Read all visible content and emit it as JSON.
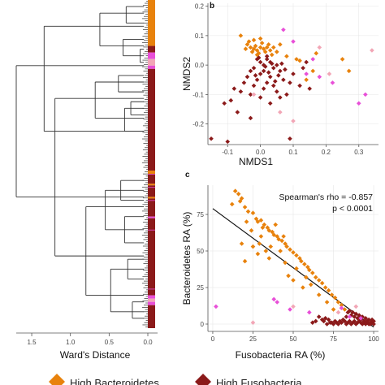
{
  "colors": {
    "high_bacteroidetes": "#e8820c",
    "high_fusobacteria": "#8b1a1a",
    "other": "#e84fd8",
    "light_pink": "#f2a6b6",
    "grid": "#e6e6e6",
    "axis": "#555555"
  },
  "legend": {
    "items": [
      {
        "label": "High Bacteroidetes",
        "color": "#e8820c"
      },
      {
        "label": "High Fusobacteria",
        "color": "#8b1a1a"
      }
    ]
  },
  "chart_data": [
    {
      "type": "dendrogram",
      "xlabel": "Ward's Distance",
      "xlim": [
        1.7,
        0
      ],
      "xticks": [
        "1.5",
        "1.0",
        "0.5",
        "0.0"
      ],
      "xtick_values": [
        1.5,
        1.0,
        0.5,
        0.0
      ],
      "strip": [
        {
          "from": 0.0,
          "to": 0.14,
          "color": "#e8820c"
        },
        {
          "from": 0.14,
          "to": 0.16,
          "color": "#8b1a1a"
        },
        {
          "from": 0.16,
          "to": 0.18,
          "color": "#e84fd8"
        },
        {
          "from": 0.18,
          "to": 0.2,
          "color": "#f2a6b6"
        },
        {
          "from": 0.2,
          "to": 0.21,
          "color": "#e84fd8"
        },
        {
          "from": 0.21,
          "to": 0.52,
          "color": "#8b1a1a"
        },
        {
          "from": 0.52,
          "to": 0.53,
          "color": "#e8820c"
        },
        {
          "from": 0.53,
          "to": 0.56,
          "color": "#8b1a1a"
        },
        {
          "from": 0.56,
          "to": 0.565,
          "color": "#e8820c"
        },
        {
          "from": 0.565,
          "to": 0.6,
          "color": "#8b1a1a"
        },
        {
          "from": 0.6,
          "to": 0.605,
          "color": "#e8820c"
        },
        {
          "from": 0.605,
          "to": 0.66,
          "color": "#8b1a1a"
        },
        {
          "from": 0.66,
          "to": 0.665,
          "color": "#e84fd8"
        },
        {
          "from": 0.665,
          "to": 0.9,
          "color": "#8b1a1a"
        },
        {
          "from": 0.9,
          "to": 0.91,
          "color": "#e84fd8"
        },
        {
          "from": 0.91,
          "to": 0.92,
          "color": "#f2a6b6"
        },
        {
          "from": 0.92,
          "to": 0.93,
          "color": "#e84fd8"
        },
        {
          "from": 0.93,
          "to": 1.0,
          "color": "#8b1a1a"
        }
      ],
      "merges": [
        {
          "h": 1.8,
          "a": 0.2,
          "b": 0.6
        },
        {
          "h": 1.34,
          "a": 0.08,
          "b": 0.4
        },
        {
          "h": 0.62,
          "a": 0.04,
          "b": 0.14
        },
        {
          "h": 0.28,
          "a": 0.02,
          "b": 0.07
        },
        {
          "h": 0.32,
          "a": 0.12,
          "b": 0.17
        },
        {
          "h": 0.1,
          "a": 0.15,
          "b": 0.19
        },
        {
          "h": 1.2,
          "a": 0.3,
          "b": 0.78
        },
        {
          "h": 0.68,
          "a": 0.25,
          "b": 0.36
        },
        {
          "h": 0.38,
          "a": 0.23,
          "b": 0.28
        },
        {
          "h": 0.3,
          "a": 0.33,
          "b": 0.4
        },
        {
          "h": 0.22,
          "a": 0.31,
          "b": 0.35
        },
        {
          "h": 0.8,
          "a": 0.63,
          "b": 0.9
        },
        {
          "h": 0.55,
          "a": 0.58,
          "b": 0.7
        },
        {
          "h": 0.35,
          "a": 0.55,
          "b": 0.61
        },
        {
          "h": 0.3,
          "a": 0.66,
          "b": 0.74
        },
        {
          "h": 0.48,
          "a": 0.82,
          "b": 0.95
        },
        {
          "h": 0.26,
          "a": 0.79,
          "b": 0.85
        },
        {
          "h": 0.2,
          "a": 0.92,
          "b": 0.97
        }
      ]
    },
    {
      "type": "scatter",
      "panel_label": "b",
      "xlabel": "NMDS1",
      "ylabel": "NMDS2",
      "xlim": [
        -0.16,
        0.36
      ],
      "ylim": [
        -0.27,
        0.21
      ],
      "xticks": [
        -0.1,
        0.0,
        0.1,
        0.2,
        0.3
      ],
      "xtick_labels": [
        "-0.1",
        "0.0",
        "0.1",
        "0.2",
        "0.3"
      ],
      "yticks": [
        0.2,
        0.1,
        0.0,
        -0.1,
        -0.2
      ],
      "ytick_labels": [
        "0.2",
        "0.1",
        "0.0",
        "-0.1",
        "-0.2"
      ],
      "grid": true,
      "points": [
        [
          -0.04,
          0.07,
          0
        ],
        [
          -0.03,
          0.06,
          0
        ],
        [
          -0.02,
          0.055,
          0
        ],
        [
          -0.015,
          0.065,
          0
        ],
        [
          -0.01,
          0.05,
          0
        ],
        [
          0.0,
          0.06,
          0
        ],
        [
          0.01,
          0.055,
          0
        ],
        [
          -0.025,
          0.045,
          0
        ],
        [
          -0.005,
          0.04,
          0
        ],
        [
          0.015,
          0.045,
          0
        ],
        [
          0.02,
          0.06,
          0
        ],
        [
          -0.035,
          0.08,
          0
        ],
        [
          -0.02,
          0.085,
          0
        ],
        [
          0.005,
          0.075,
          0
        ],
        [
          -0.045,
          0.055,
          0
        ],
        [
          0.025,
          0.07,
          0
        ],
        [
          0.03,
          0.05,
          0
        ],
        [
          0.04,
          0.06,
          0
        ],
        [
          0.0,
          0.09,
          0
        ],
        [
          -0.01,
          0.035,
          0
        ],
        [
          0.035,
          0.035,
          0
        ],
        [
          0.05,
          0.045,
          0
        ],
        [
          -0.06,
          0.1,
          0
        ],
        [
          0.06,
          0.07,
          0
        ],
        [
          0.08,
          0.03,
          0
        ],
        [
          0.11,
          0.02,
          0
        ],
        [
          0.12,
          0.015,
          0
        ],
        [
          0.16,
          -0.02,
          0
        ],
        [
          0.25,
          0.02,
          0
        ],
        [
          0.27,
          -0.02,
          0
        ],
        [
          0.14,
          -0.05,
          0
        ],
        [
          0.17,
          0.04,
          0
        ],
        [
          -0.01,
          0.02,
          1
        ],
        [
          0.0,
          0.01,
          1
        ],
        [
          0.01,
          0.0,
          1
        ],
        [
          -0.02,
          -0.01,
          1
        ],
        [
          0.02,
          0.02,
          1
        ],
        [
          0.03,
          0.01,
          1
        ],
        [
          0.01,
          -0.02,
          1
        ],
        [
          0.04,
          -0.01,
          1
        ],
        [
          0.05,
          0.0,
          1
        ],
        [
          0.0,
          -0.03,
          1
        ],
        [
          -0.03,
          -0.02,
          1
        ],
        [
          0.03,
          -0.04,
          1
        ],
        [
          0.06,
          -0.02,
          1
        ],
        [
          -0.01,
          -0.05,
          1
        ],
        [
          0.02,
          -0.06,
          1
        ],
        [
          -0.04,
          -0.04,
          1
        ],
        [
          0.07,
          -0.05,
          1
        ],
        [
          0.04,
          -0.07,
          1
        ],
        [
          0.01,
          -0.08,
          1
        ],
        [
          -0.02,
          -0.07,
          1
        ],
        [
          -0.05,
          -0.06,
          1
        ],
        [
          0.05,
          -0.09,
          1
        ],
        [
          0.09,
          -0.06,
          1
        ],
        [
          -0.03,
          -0.1,
          1
        ],
        [
          0.0,
          -0.11,
          1
        ],
        [
          0.06,
          -0.11,
          1
        ],
        [
          -0.06,
          -0.09,
          1
        ],
        [
          0.08,
          -0.1,
          1
        ],
        [
          -0.08,
          -0.08,
          1
        ],
        [
          0.03,
          -0.13,
          1
        ],
        [
          -0.09,
          -0.12,
          1
        ],
        [
          0.1,
          -0.03,
          1
        ],
        [
          0.12,
          -0.07,
          1
        ],
        [
          0.14,
          0.01,
          1
        ],
        [
          0.02,
          0.03,
          1
        ],
        [
          -0.005,
          0.025,
          1
        ],
        [
          0.015,
          -0.005,
          1
        ],
        [
          0.035,
          0.005,
          1
        ],
        [
          0.055,
          -0.035,
          1
        ],
        [
          0.025,
          -0.025,
          1
        ],
        [
          -0.015,
          -0.035,
          1
        ],
        [
          0.045,
          -0.055,
          1
        ],
        [
          0.065,
          0.005,
          1
        ],
        [
          0.075,
          -0.015,
          1
        ],
        [
          -0.11,
          -0.13,
          1
        ],
        [
          -0.07,
          -0.16,
          1
        ],
        [
          -0.03,
          -0.18,
          1
        ],
        [
          -0.15,
          -0.25,
          1
        ],
        [
          -0.1,
          -0.26,
          1
        ],
        [
          0.09,
          -0.25,
          1
        ],
        [
          0.13,
          -0.01,
          1
        ],
        [
          0.15,
          -0.08,
          1
        ],
        [
          0.1,
          0.08,
          2
        ],
        [
          0.07,
          0.12,
          2
        ],
        [
          0.14,
          -0.03,
          2
        ],
        [
          0.22,
          -0.06,
          2
        ],
        [
          0.16,
          0.02,
          2
        ],
        [
          0.3,
          -0.13,
          2
        ],
        [
          0.32,
          -0.1,
          2
        ],
        [
          0.18,
          -0.04,
          2
        ],
        [
          0.18,
          0.06,
          3
        ],
        [
          0.21,
          -0.03,
          3
        ],
        [
          0.34,
          0.05,
          3
        ],
        [
          0.1,
          -0.19,
          3
        ],
        [
          -0.02,
          -0.1,
          3
        ],
        [
          0.06,
          -0.16,
          3
        ]
      ]
    },
    {
      "type": "scatter",
      "panel_label": "c",
      "xlabel": "Fusobacteria RA (%)",
      "ylabel": "Bacteroidetes RA (%)",
      "xlim": [
        -3,
        103
      ],
      "ylim": [
        -5,
        95
      ],
      "xticks": [
        0,
        25,
        50,
        75,
        100
      ],
      "xtick_labels": [
        "0",
        "25",
        "50",
        "75",
        "100"
      ],
      "yticks": [
        0,
        25,
        50,
        75
      ],
      "ytick_labels": [
        "0",
        "25",
        "50",
        "75"
      ],
      "grid": true,
      "annotation_lines": [
        "Spearman's rho = -0.857",
        "p < 0.0001"
      ],
      "regression": {
        "x": [
          0,
          100
        ],
        "y": [
          79,
          -2
        ]
      },
      "points": [
        [
          14,
          91,
          0
        ],
        [
          16,
          89,
          0
        ],
        [
          18,
          86,
          0
        ],
        [
          17,
          84,
          0
        ],
        [
          20,
          80,
          0
        ],
        [
          22,
          77,
          0
        ],
        [
          25,
          76,
          0
        ],
        [
          27,
          72,
          0
        ],
        [
          28,
          70,
          0
        ],
        [
          30,
          71,
          0
        ],
        [
          32,
          68,
          0
        ],
        [
          31,
          66,
          0
        ],
        [
          34,
          66,
          0
        ],
        [
          35,
          64,
          0
        ],
        [
          37,
          63,
          0
        ],
        [
          38,
          61,
          0
        ],
        [
          40,
          60,
          0
        ],
        [
          41,
          58,
          0
        ],
        [
          43,
          57,
          0
        ],
        [
          45,
          55,
          0
        ],
        [
          46,
          53,
          0
        ],
        [
          48,
          51,
          0
        ],
        [
          50,
          49,
          0
        ],
        [
          52,
          47,
          0
        ],
        [
          54,
          45,
          0
        ],
        [
          55,
          43,
          0
        ],
        [
          57,
          41,
          0
        ],
        [
          59,
          39,
          0
        ],
        [
          60,
          37,
          0
        ],
        [
          62,
          35,
          0
        ],
        [
          64,
          32,
          0
        ],
        [
          66,
          30,
          0
        ],
        [
          68,
          28,
          0
        ],
        [
          70,
          25,
          0
        ],
        [
          72,
          23,
          0
        ],
        [
          74,
          20,
          0
        ],
        [
          76,
          18,
          0
        ],
        [
          78,
          15,
          0
        ],
        [
          80,
          13,
          0
        ],
        [
          82,
          10,
          0
        ],
        [
          28,
          48,
          0
        ],
        [
          33,
          50,
          0
        ],
        [
          36,
          53,
          0
        ],
        [
          42,
          50,
          0
        ],
        [
          30,
          60,
          0
        ],
        [
          24,
          64,
          0
        ],
        [
          12,
          82,
          0
        ],
        [
          29,
          55,
          0
        ],
        [
          35,
          45,
          0
        ],
        [
          45,
          42,
          0
        ],
        [
          52,
          38,
          0
        ],
        [
          58,
          32,
          0
        ],
        [
          25,
          53,
          0
        ],
        [
          39,
          68,
          0
        ],
        [
          21,
          70,
          0
        ],
        [
          18,
          55,
          0
        ],
        [
          20,
          43,
          0
        ],
        [
          50,
          30,
          0
        ],
        [
          61,
          27,
          0
        ],
        [
          47,
          33,
          0
        ],
        [
          75,
          10,
          0
        ],
        [
          71,
          15,
          0
        ],
        [
          66,
          20,
          0
        ],
        [
          56,
          25,
          0
        ],
        [
          44,
          60,
          0
        ],
        [
          84,
          8,
          1
        ],
        [
          86,
          6,
          1
        ],
        [
          88,
          5,
          1
        ],
        [
          90,
          4,
          1
        ],
        [
          92,
          3,
          1
        ],
        [
          94,
          2,
          1
        ],
        [
          96,
          1,
          1
        ],
        [
          98,
          0,
          1
        ],
        [
          99,
          1,
          1
        ],
        [
          97,
          3,
          1
        ],
        [
          95,
          4,
          1
        ],
        [
          93,
          5,
          1
        ],
        [
          91,
          6,
          1
        ],
        [
          89,
          7,
          1
        ],
        [
          87,
          8,
          1
        ],
        [
          85,
          9,
          1
        ],
        [
          83,
          5,
          1
        ],
        [
          81,
          3,
          1
        ],
        [
          79,
          2,
          1
        ],
        [
          77,
          1,
          1
        ],
        [
          75,
          0,
          1
        ],
        [
          73,
          1,
          1
        ],
        [
          71,
          0,
          1
        ],
        [
          69,
          2,
          1
        ],
        [
          100,
          0,
          1
        ],
        [
          99,
          2,
          1
        ],
        [
          98,
          1,
          1
        ],
        [
          97,
          0,
          1
        ],
        [
          96,
          2,
          1
        ],
        [
          95,
          0,
          1
        ],
        [
          94,
          1,
          1
        ],
        [
          93,
          0,
          1
        ],
        [
          92,
          1,
          1
        ],
        [
          91,
          2,
          1
        ],
        [
          90,
          1,
          1
        ],
        [
          89,
          0,
          1
        ],
        [
          88,
          2,
          1
        ],
        [
          87,
          1,
          1
        ],
        [
          86,
          0,
          1
        ],
        [
          85,
          2,
          1
        ],
        [
          84,
          1,
          1
        ],
        [
          83,
          0,
          1
        ],
        [
          82,
          2,
          1
        ],
        [
          80,
          1,
          1
        ],
        [
          78,
          0,
          1
        ],
        [
          76,
          2,
          1
        ],
        [
          74,
          1,
          1
        ],
        [
          72,
          3,
          1
        ],
        [
          70,
          4,
          1
        ],
        [
          68,
          3,
          1
        ],
        [
          66,
          5,
          1
        ],
        [
          64,
          2,
          1
        ],
        [
          99,
          3,
          1
        ],
        [
          100,
          2,
          1
        ],
        [
          62,
          1,
          1
        ],
        [
          2,
          12,
          2
        ],
        [
          38,
          17,
          2
        ],
        [
          48,
          10,
          2
        ],
        [
          60,
          8,
          2
        ],
        [
          40,
          15,
          2
        ],
        [
          80,
          11,
          2
        ],
        [
          92,
          4,
          2
        ],
        [
          85,
          5,
          2
        ],
        [
          50,
          12,
          3
        ],
        [
          78,
          8,
          3
        ],
        [
          25,
          1,
          3
        ],
        [
          89,
          12,
          3
        ]
      ]
    }
  ]
}
